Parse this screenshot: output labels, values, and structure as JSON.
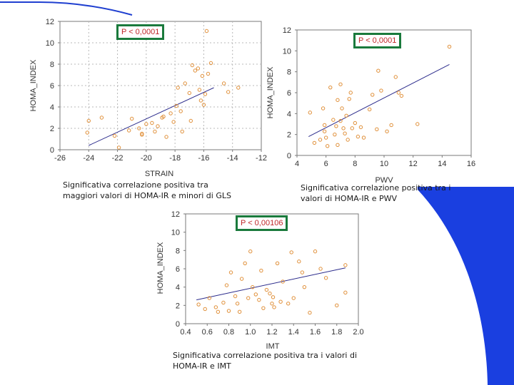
{
  "decor": {
    "top_line_color": "#1f3fd0",
    "corner_color": "#1a3fe0"
  },
  "chart_data": [
    {
      "id": "strain",
      "type": "scatter",
      "title": "",
      "xlabel": "STRAIN",
      "ylabel": "HOMA_INDEX",
      "xlim": [
        -26,
        -12
      ],
      "ylim": [
        0,
        12
      ],
      "xticks": [
        -26,
        -24,
        -22,
        -20,
        -18,
        -16,
        -14,
        -12
      ],
      "yticks": [
        0,
        2,
        4,
        6,
        8,
        10,
        12
      ],
      "grid": true,
      "marker_color": "#e0903a",
      "line_color": "#2c2c8c",
      "trendline": {
        "x1": -24,
        "y1": 0.4,
        "x2": -15.3,
        "y2": 5.8
      },
      "p_value": "P < 0,0001",
      "caption": [
        "Significativa correlazione positiva tra",
        "maggiori valori di HOMA-IR e minori di GLS"
      ],
      "points": [
        [
          -24.1,
          1.6
        ],
        [
          -24,
          2.7
        ],
        [
          -23.1,
          3.0
        ],
        [
          -22.2,
          1.3
        ],
        [
          -21.9,
          0.2
        ],
        [
          -21.2,
          1.8
        ],
        [
          -21,
          2.9
        ],
        [
          -20.5,
          2.0
        ],
        [
          -20.3,
          1.5
        ],
        [
          -20,
          2.4
        ],
        [
          -19.6,
          2.5
        ],
        [
          -19.4,
          1.7
        ],
        [
          -19.2,
          2.2
        ],
        [
          -18.9,
          3.0
        ],
        [
          -18.6,
          1.2
        ],
        [
          -18.3,
          3.4
        ],
        [
          -18.1,
          2.6
        ],
        [
          -17.9,
          4.1
        ],
        [
          -17.8,
          5.8
        ],
        [
          -17.5,
          1.7
        ],
        [
          -17.3,
          6.2
        ],
        [
          -17,
          5.3
        ],
        [
          -16.8,
          7.9
        ],
        [
          -16.6,
          7.4
        ],
        [
          -16.4,
          7.6
        ],
        [
          -16.3,
          5.6
        ],
        [
          -16.2,
          4.6
        ],
        [
          -16.1,
          6.9
        ],
        [
          -16,
          4.2
        ],
        [
          -15.9,
          5.2
        ],
        [
          -15.7,
          7.1
        ],
        [
          -15.5,
          8.1
        ],
        [
          -15.8,
          11.1
        ],
        [
          -14.6,
          6.2
        ],
        [
          -14.3,
          5.4
        ],
        [
          -13.6,
          5.8
        ],
        [
          -20.3,
          1.4
        ],
        [
          -18.8,
          3.1
        ],
        [
          -17.6,
          3.6
        ],
        [
          -16.9,
          2.7
        ]
      ]
    },
    {
      "id": "pwv",
      "type": "scatter",
      "title": "",
      "xlabel": "PWV",
      "ylabel": "HOMA_INDEX",
      "xlim": [
        4,
        16
      ],
      "ylim": [
        0,
        12
      ],
      "xticks": [
        4,
        6,
        8,
        10,
        12,
        14,
        16
      ],
      "yticks": [
        0,
        2,
        4,
        6,
        8,
        10,
        12
      ],
      "grid": false,
      "marker_color": "#e0903a",
      "line_color": "#2c2c8c",
      "trendline": {
        "x1": 4.8,
        "y1": 1.8,
        "x2": 14.5,
        "y2": 8.7
      },
      "p_value": "P < 0,0001",
      "caption": [
        "Significativa correlazione positiva tra i",
        "valori di HOMA-IR e PWV"
      ],
      "points": [
        [
          4.9,
          4.1
        ],
        [
          5.2,
          1.2
        ],
        [
          5.6,
          1.5
        ],
        [
          5.8,
          4.5
        ],
        [
          5.9,
          2.9
        ],
        [
          6.0,
          1.7
        ],
        [
          6.1,
          0.9
        ],
        [
          6.3,
          6.5
        ],
        [
          6.5,
          3.4
        ],
        [
          6.6,
          2.0
        ],
        [
          6.7,
          2.8
        ],
        [
          6.8,
          1.0
        ],
        [
          6.8,
          5.3
        ],
        [
          7.0,
          6.8
        ],
        [
          7.0,
          3.3
        ],
        [
          7.1,
          4.5
        ],
        [
          7.2,
          2.6
        ],
        [
          7.3,
          2.1
        ],
        [
          7.4,
          3.8
        ],
        [
          7.5,
          1.5
        ],
        [
          7.6,
          5.4
        ],
        [
          7.7,
          6.0
        ],
        [
          7.8,
          2.6
        ],
        [
          8.0,
          3.1
        ],
        [
          8.2,
          1.8
        ],
        [
          8.4,
          2.7
        ],
        [
          8.6,
          1.7
        ],
        [
          9.0,
          4.4
        ],
        [
          9.2,
          5.8
        ],
        [
          9.5,
          2.5
        ],
        [
          9.6,
          8.1
        ],
        [
          9.8,
          6.2
        ],
        [
          10.2,
          2.3
        ],
        [
          10.5,
          2.9
        ],
        [
          10.8,
          7.5
        ],
        [
          11.0,
          6.0
        ],
        [
          11.2,
          5.7
        ],
        [
          12.3,
          3.0
        ],
        [
          14.5,
          10.4
        ],
        [
          5.9,
          2.3
        ]
      ]
    },
    {
      "id": "imt",
      "type": "scatter",
      "title": "",
      "xlabel": "IMT",
      "ylabel": "HOMA_INDEX",
      "xlim": [
        0.4,
        2.0
      ],
      "ylim": [
        0,
        12
      ],
      "xticks": [
        0.4,
        0.6,
        0.8,
        1.0,
        1.2,
        1.4,
        1.6,
        1.8,
        2.0
      ],
      "xtick_labels": [
        "0.4",
        "0.6",
        "0.8",
        "1.0",
        "1.2",
        "1.4",
        "1.6",
        "1.8",
        "2.0"
      ],
      "yticks": [
        0,
        2,
        4,
        6,
        8,
        10,
        12
      ],
      "grid": false,
      "marker_color": "#e0903a",
      "line_color": "#2c2c8c",
      "trendline": {
        "x1": 0.5,
        "y1": 2.6,
        "x2": 1.88,
        "y2": 6.1
      },
      "p_value": "P < 0,00106",
      "caption": [
        "Significativa correlazione positiva tra i valori di",
        "HOMA-IR e IMT"
      ],
      "points": [
        [
          0.52,
          2.1
        ],
        [
          0.58,
          1.6
        ],
        [
          0.62,
          2.8
        ],
        [
          0.68,
          1.8
        ],
        [
          0.7,
          1.3
        ],
        [
          0.78,
          4.2
        ],
        [
          0.8,
          1.4
        ],
        [
          0.82,
          5.6
        ],
        [
          0.86,
          3.0
        ],
        [
          0.88,
          2.2
        ],
        [
          0.9,
          1.3
        ],
        [
          0.92,
          4.9
        ],
        [
          0.95,
          6.6
        ],
        [
          0.98,
          2.8
        ],
        [
          1.0,
          7.9
        ],
        [
          1.02,
          4.0
        ],
        [
          1.05,
          3.2
        ],
        [
          1.08,
          2.6
        ],
        [
          1.1,
          5.8
        ],
        [
          1.12,
          1.7
        ],
        [
          1.15,
          3.7
        ],
        [
          1.18,
          3.3
        ],
        [
          1.2,
          2.2
        ],
        [
          1.21,
          2.9
        ],
        [
          1.22,
          1.8
        ],
        [
          1.25,
          6.6
        ],
        [
          1.28,
          2.4
        ],
        [
          1.3,
          4.6
        ],
        [
          1.35,
          2.2
        ],
        [
          1.38,
          7.8
        ],
        [
          1.4,
          2.8
        ],
        [
          1.45,
          6.8
        ],
        [
          1.48,
          5.6
        ],
        [
          1.5,
          4.0
        ],
        [
          1.55,
          1.2
        ],
        [
          1.6,
          7.9
        ],
        [
          1.65,
          6.0
        ],
        [
          1.7,
          5.0
        ],
        [
          1.8,
          2.0
        ],
        [
          1.88,
          6.4
        ],
        [
          1.88,
          3.4
        ],
        [
          0.75,
          2.3
        ]
      ]
    }
  ]
}
